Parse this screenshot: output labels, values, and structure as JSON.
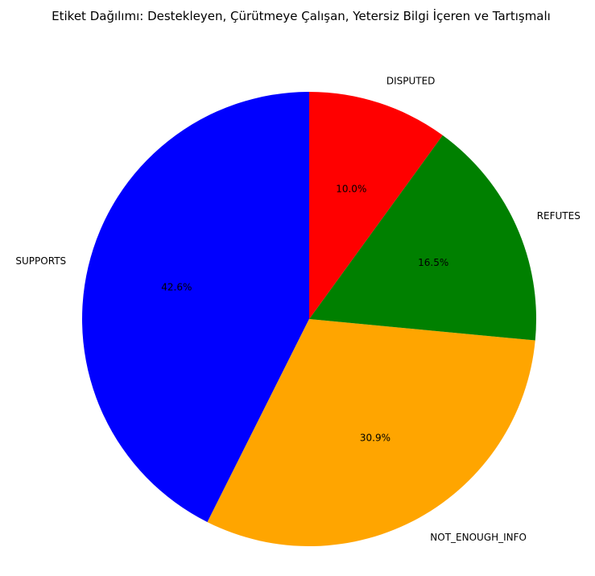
{
  "chart_data": {
    "type": "pie",
    "title": "Etiket Dağılımı: Destekleyen, Çürütmeye Çalışan, Yetersiz Bilgi İçeren ve Tartışmalı",
    "categories": [
      "SUPPORTS",
      "NOT_ENOUGH_INFO",
      "REFUTES",
      "DISPUTED"
    ],
    "values": [
      42.6,
      30.9,
      16.5,
      10.0
    ],
    "value_labels": [
      "42.6%",
      "30.9%",
      "16.5%",
      "10.0%"
    ],
    "colors": [
      "#0000ff",
      "#ffa500",
      "#008000",
      "#ff0000"
    ],
    "start_angle_deg": 90,
    "direction": "counterclockwise",
    "legend": "none"
  }
}
